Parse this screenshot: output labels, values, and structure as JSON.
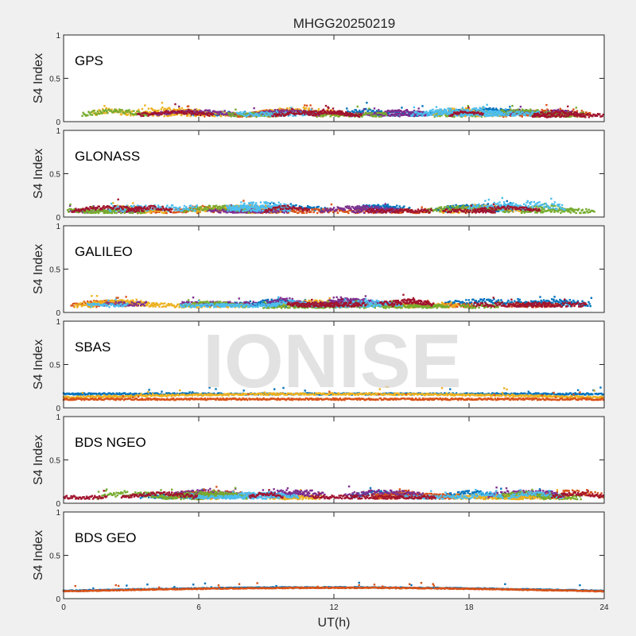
{
  "figure": {
    "title": "MHGG20250219",
    "watermark": "IONISE",
    "background": "#f0f0f0",
    "axes_background": "#ffffff"
  },
  "chart_data": [
    {
      "type": "scatter",
      "panel_label": "GPS",
      "ylabel": "S4 Index",
      "xlim": [
        0,
        24
      ],
      "ylim": [
        0,
        1
      ],
      "yticks": [
        0,
        0.5,
        1
      ],
      "ytick_labels": [
        "0",
        "0.5",
        "1"
      ],
      "series": [
        {
          "color": "#0072BD",
          "baseline": 0.09,
          "spread": 0.05
        },
        {
          "color": "#D95319",
          "baseline": 0.08,
          "spread": 0.05
        },
        {
          "color": "#EDB120",
          "baseline": 0.09,
          "spread": 0.06
        },
        {
          "color": "#7E2F8E",
          "baseline": 0.08,
          "spread": 0.04
        },
        {
          "color": "#77AC30",
          "baseline": 0.08,
          "spread": 0.05
        },
        {
          "color": "#4DBEEE",
          "baseline": 0.09,
          "spread": 0.05
        },
        {
          "color": "#A2142F",
          "baseline": 0.07,
          "spread": 0.04
        }
      ]
    },
    {
      "type": "scatter",
      "panel_label": "GLONASS",
      "ylabel": "S4 Index",
      "xlim": [
        0,
        24
      ],
      "ylim": [
        0,
        1
      ],
      "yticks": [
        0,
        0.5,
        1
      ],
      "ytick_labels": [
        "0",
        "0.5",
        "1"
      ],
      "series": [
        {
          "color": "#0072BD",
          "baseline": 0.08,
          "spread": 0.05
        },
        {
          "color": "#D95319",
          "baseline": 0.07,
          "spread": 0.05
        },
        {
          "color": "#EDB120",
          "baseline": 0.07,
          "spread": 0.05
        },
        {
          "color": "#7E2F8E",
          "baseline": 0.07,
          "spread": 0.04
        },
        {
          "color": "#77AC30",
          "baseline": 0.07,
          "spread": 0.05
        },
        {
          "color": "#4DBEEE",
          "baseline": 0.1,
          "spread": 0.07
        },
        {
          "color": "#A2142F",
          "baseline": 0.07,
          "spread": 0.04
        }
      ]
    },
    {
      "type": "scatter",
      "panel_label": "GALILEO",
      "ylabel": "S4 Index",
      "xlim": [
        0,
        24
      ],
      "ylim": [
        0,
        1
      ],
      "yticks": [
        0,
        0.5,
        1
      ],
      "ytick_labels": [
        "0",
        "0.5",
        "1"
      ],
      "series": [
        {
          "color": "#0072BD",
          "baseline": 0.09,
          "spread": 0.05
        },
        {
          "color": "#D95319",
          "baseline": 0.08,
          "spread": 0.04
        },
        {
          "color": "#EDB120",
          "baseline": 0.08,
          "spread": 0.05
        },
        {
          "color": "#7E2F8E",
          "baseline": 0.1,
          "spread": 0.05
        },
        {
          "color": "#77AC30",
          "baseline": 0.07,
          "spread": 0.04
        },
        {
          "color": "#4DBEEE",
          "baseline": 0.08,
          "spread": 0.04
        },
        {
          "color": "#A2142F",
          "baseline": 0.09,
          "spread": 0.05
        }
      ]
    },
    {
      "type": "scatter",
      "panel_label": "SBAS",
      "ylabel": "S4 Index",
      "xlim": [
        0,
        24
      ],
      "ylim": [
        0,
        1
      ],
      "yticks": [
        0,
        0.5,
        1
      ],
      "ytick_labels": [
        "0",
        "0.5",
        "1"
      ],
      "series": [
        {
          "color": "#0072BD",
          "baseline": 0.16,
          "spread": 0.02
        },
        {
          "color": "#EDB120",
          "baseline": 0.12,
          "spread": 0.02
        },
        {
          "color": "#D95319",
          "baseline": 0.1,
          "spread": 0.02
        }
      ]
    },
    {
      "type": "scatter",
      "panel_label": "BDS NGEO",
      "ylabel": "S4 Index",
      "xlim": [
        0,
        24
      ],
      "ylim": [
        0,
        1
      ],
      "yticks": [
        0,
        0.5,
        1
      ],
      "ytick_labels": [
        "0",
        "0.5",
        "1"
      ],
      "series": [
        {
          "color": "#0072BD",
          "baseline": 0.08,
          "spread": 0.05
        },
        {
          "color": "#D95319",
          "baseline": 0.08,
          "spread": 0.06
        },
        {
          "color": "#EDB120",
          "baseline": 0.07,
          "spread": 0.05
        },
        {
          "color": "#7E2F8E",
          "baseline": 0.09,
          "spread": 0.05
        },
        {
          "color": "#77AC30",
          "baseline": 0.07,
          "spread": 0.05
        },
        {
          "color": "#4DBEEE",
          "baseline": 0.07,
          "spread": 0.04
        },
        {
          "color": "#A2142F",
          "baseline": 0.07,
          "spread": 0.04
        }
      ]
    },
    {
      "type": "scatter",
      "panel_label": "BDS GEO",
      "ylabel": "S4 Index",
      "xlim": [
        0,
        24
      ],
      "ylim": [
        0,
        1
      ],
      "yticks": [
        0,
        0.5,
        1
      ],
      "ytick_labels": [
        "0",
        "0.5",
        "1"
      ],
      "series": [
        {
          "color": "#0072BD",
          "baseline": 0.09,
          "spread": 0.01
        },
        {
          "color": "#D95319",
          "baseline": 0.085,
          "spread": 0.01
        }
      ]
    }
  ],
  "x_axis": {
    "label": "UT(h)",
    "ticks": [
      0,
      6,
      12,
      18,
      24
    ],
    "tick_labels": [
      "0",
      "6",
      "12",
      "18",
      "24"
    ]
  }
}
